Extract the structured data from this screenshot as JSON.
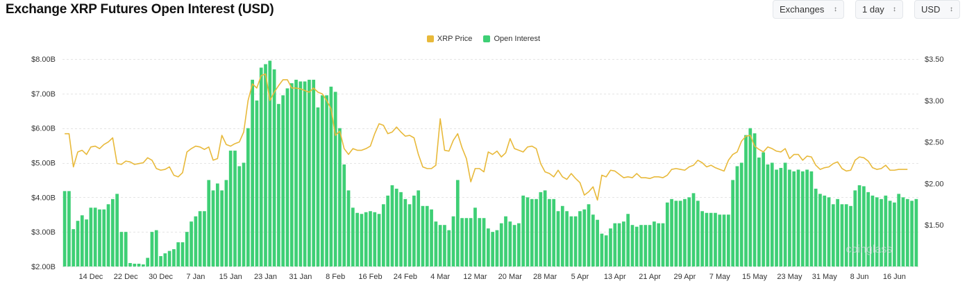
{
  "header": {
    "title": "Exchange XRP Futures Open Interest (USD)",
    "exchanges_label": "Exchanges",
    "interval_label": "1 day",
    "currency_label": "USD"
  },
  "colors": {
    "open_interest": "#3ecf75",
    "price": "#e8b93a",
    "grid": "#e4e4e4",
    "axis_text": "#333333"
  },
  "watermark": "coinglass",
  "chart_data": {
    "type": "bar",
    "title": "Exchange XRP Futures Open Interest (USD)",
    "legend": [
      "XRP Price",
      "Open Interest"
    ],
    "legend_position": "top-center",
    "y_left_ticks": [
      "$8.00B",
      "$7.00B",
      "$6.00B",
      "$5.00B",
      "$4.00B",
      "$3.00B",
      "$2.00B"
    ],
    "y_left_values": [
      8,
      7,
      6,
      5,
      4,
      3,
      2
    ],
    "y_left_range": [
      2,
      8
    ],
    "y_right_ticks": [
      "$3.50",
      "$3.00",
      "$2.50",
      "$2.00",
      "$1.50"
    ],
    "y_right_values": [
      3.5,
      3.0,
      2.5,
      2.0,
      1.5
    ],
    "y_right_range": [
      1.0,
      3.5
    ],
    "x_tick_labels": [
      "14 Dec",
      "22 Dec",
      "30 Dec",
      "7 Jan",
      "15 Jan",
      "23 Jan",
      "31 Jan",
      "8 Feb",
      "16 Feb",
      "24 Feb",
      "4 Mar",
      "12 Mar",
      "20 Mar",
      "28 Mar",
      "5 Apr",
      "13 Apr",
      "21 Apr",
      "29 Apr",
      "7 May",
      "15 May",
      "23 May",
      "31 May",
      "8 Jun",
      "16 Jun"
    ],
    "x_tick_index": [
      6,
      14,
      22,
      30,
      38,
      46,
      54,
      62,
      70,
      78,
      86,
      94,
      102,
      110,
      118,
      126,
      134,
      142,
      150,
      158,
      166,
      174,
      182,
      190
    ],
    "series": [
      {
        "name": "Open Interest",
        "unit": "B USD",
        "values": [
          4.18,
          4.18,
          3.08,
          3.32,
          3.48,
          3.36,
          3.7,
          3.7,
          3.65,
          3.65,
          3.8,
          3.95,
          4.1,
          3.0,
          3.0,
          2.1,
          2.08,
          2.08,
          2.06,
          2.25,
          3.0,
          3.05,
          2.3,
          2.38,
          2.45,
          2.5,
          2.7,
          2.7,
          3.0,
          3.3,
          3.45,
          3.6,
          3.6,
          4.5,
          4.2,
          4.4,
          4.2,
          4.5,
          5.35,
          5.35,
          4.9,
          5.0,
          6.0,
          7.4,
          6.8,
          7.75,
          7.85,
          7.95,
          7.7,
          6.7,
          6.95,
          7.15,
          7.3,
          7.4,
          7.35,
          7.35,
          7.4,
          7.4,
          6.6,
          6.95,
          6.95,
          7.2,
          7.05,
          6.0,
          4.95,
          4.2,
          3.7,
          3.55,
          3.52,
          3.57,
          3.6,
          3.57,
          3.52,
          3.8,
          4.05,
          4.35,
          4.25,
          4.15,
          3.95,
          3.8,
          4.05,
          4.2,
          3.75,
          3.75,
          3.65,
          3.3,
          3.2,
          3.2,
          3.05,
          3.45,
          4.5,
          3.4,
          3.4,
          3.4,
          3.7,
          3.4,
          3.4,
          3.1,
          3.0,
          3.05,
          3.25,
          3.45,
          3.3,
          3.2,
          3.25,
          4.05,
          4.0,
          3.95,
          3.95,
          4.15,
          4.2,
          3.95,
          3.95,
          3.6,
          3.75,
          3.6,
          3.45,
          3.45,
          3.6,
          3.65,
          3.8,
          3.5,
          3.35,
          2.95,
          2.9,
          3.1,
          3.25,
          3.25,
          3.3,
          3.52,
          3.2,
          3.15,
          3.2,
          3.2,
          3.2,
          3.3,
          3.25,
          3.25,
          3.85,
          3.95,
          3.9,
          3.9,
          3.95,
          4.0,
          4.12,
          3.9,
          3.6,
          3.55,
          3.55,
          3.55,
          3.5,
          3.5,
          3.5,
          4.5,
          4.9,
          5.0,
          5.8,
          6.0,
          5.85,
          5.15,
          5.3,
          4.95,
          5.0,
          4.8,
          4.85,
          5.0,
          4.8,
          4.75,
          4.8,
          4.75,
          4.8,
          4.75,
          4.25,
          4.1,
          4.05,
          4.0,
          3.8,
          3.95,
          3.8,
          3.8,
          3.75,
          4.2,
          4.35,
          4.32,
          4.15,
          4.05,
          4.0,
          3.95,
          4.05,
          3.9,
          3.85,
          4.1,
          4.0,
          3.95,
          3.9,
          3.95
        ]
      },
      {
        "name": "XRP Price",
        "unit": "USD",
        "values": [
          2.6,
          2.6,
          2.2,
          2.38,
          2.4,
          2.35,
          2.44,
          2.45,
          2.42,
          2.47,
          2.5,
          2.55,
          2.24,
          2.23,
          2.27,
          2.26,
          2.23,
          2.24,
          2.25,
          2.31,
          2.28,
          2.18,
          2.16,
          2.17,
          2.2,
          2.1,
          2.08,
          2.13,
          2.38,
          2.42,
          2.45,
          2.44,
          2.41,
          2.44,
          2.28,
          2.3,
          2.58,
          2.47,
          2.45,
          2.48,
          2.5,
          2.62,
          3.0,
          3.2,
          3.15,
          3.3,
          3.32,
          3.0,
          3.1,
          3.18,
          3.25,
          3.25,
          3.15,
          3.15,
          3.14,
          3.12,
          3.1,
          3.15,
          3.1,
          3.08,
          3.0,
          2.9,
          2.58,
          2.63,
          2.42,
          2.35,
          2.42,
          2.4,
          2.4,
          2.42,
          2.45,
          2.6,
          2.72,
          2.7,
          2.6,
          2.62,
          2.68,
          2.62,
          2.57,
          2.58,
          2.55,
          2.35,
          2.2,
          2.18,
          2.18,
          2.22,
          2.78,
          2.4,
          2.39,
          2.52,
          2.6,
          2.43,
          2.3,
          2.02,
          2.18,
          2.18,
          2.14,
          2.38,
          2.35,
          2.39,
          2.32,
          2.37,
          2.54,
          2.42,
          2.4,
          2.38,
          2.44,
          2.45,
          2.42,
          2.24,
          2.14,
          2.12,
          2.08,
          2.16,
          2.08,
          2.05,
          2.12,
          2.06,
          2.01,
          1.86,
          1.9,
          1.96,
          1.8,
          2.1,
          2.08,
          2.16,
          2.15,
          2.11,
          2.07,
          2.08,
          2.07,
          2.12,
          2.07,
          2.07,
          2.06,
          2.08,
          2.08,
          2.07,
          2.1,
          2.17,
          2.18,
          2.17,
          2.16,
          2.2,
          2.22,
          2.28,
          2.25,
          2.2,
          2.22,
          2.19,
          2.17,
          2.15,
          2.28,
          2.35,
          2.38,
          2.51,
          2.57,
          2.58,
          2.45,
          2.41,
          2.38,
          2.44,
          2.42,
          2.39,
          2.38,
          2.42,
          2.3,
          2.35,
          2.35,
          2.28,
          2.33,
          2.32,
          2.22,
          2.17,
          2.19,
          2.2,
          2.24,
          2.26,
          2.18,
          2.15,
          2.16,
          2.28,
          2.32,
          2.31,
          2.27,
          2.19,
          2.17,
          2.18,
          2.22,
          2.16,
          2.16,
          2.17,
          2.17,
          2.17
        ]
      }
    ]
  }
}
